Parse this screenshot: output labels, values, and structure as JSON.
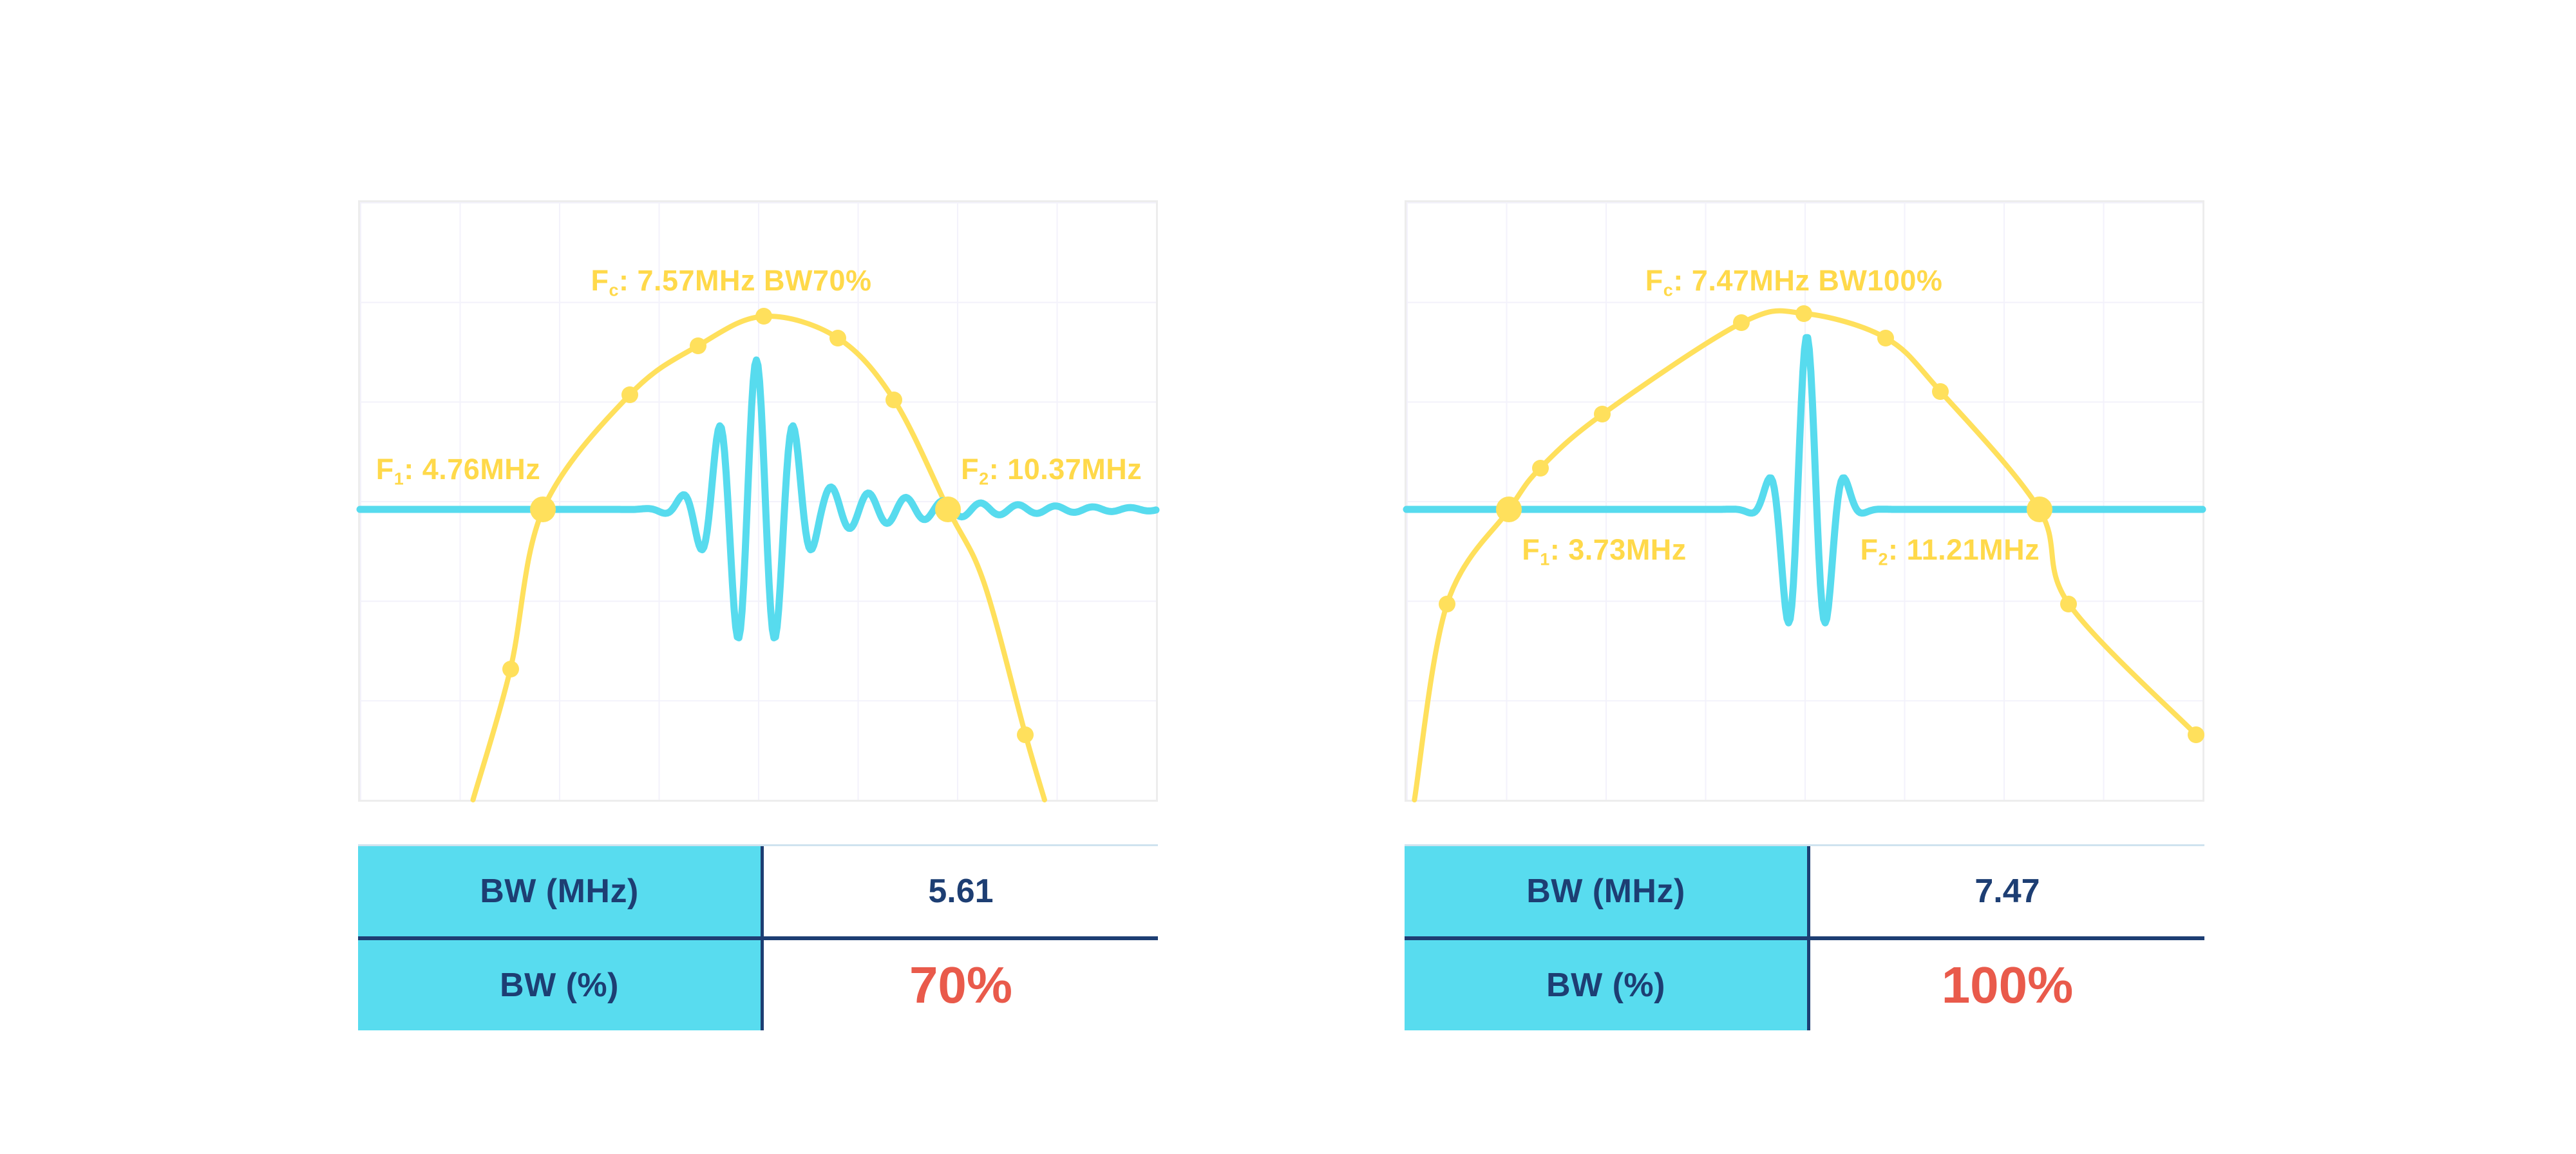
{
  "colors": {
    "spectrum_yellow": "#FFE05C",
    "annotation_yellow": "#FFD94A",
    "signal_cyan": "#57DBEE",
    "table_cyan": "#58DCEF",
    "navy": "#1D3E73",
    "accent_red": "#E95A4B",
    "grid": "#f3f2fb",
    "panel_border": "#ededed"
  },
  "chart_data": [
    {
      "type": "line",
      "id": "bw70",
      "grid": true,
      "axes_visible": false,
      "center_frequency_mhz": 7.57,
      "f_low_mhz": 4.76,
      "f_high_mhz": 10.37,
      "bandwidth_mhz": 5.61,
      "bandwidth_percent": 70,
      "labels": {
        "f": "F",
        "fc_sub": "c",
        "fc_text": ": 7.57MHz BW70%",
        "f1_sub": "1",
        "f1_text": ": 4.76MHz",
        "f2_sub": "2",
        "f2_text": ": 10.37MHz"
      },
      "positions": {
        "fc": {
          "x": 29,
          "y": 10.5
        },
        "f1": {
          "x": 2,
          "y": 42
        },
        "f2": {
          "x": 75.5,
          "y": 42
        }
      },
      "baseline_y": 51.4,
      "spectrum_points": [
        [
          14.2,
          100
        ],
        [
          18.9,
          78.1
        ],
        [
          23,
          51.4
        ],
        [
          33.9,
          32.2
        ],
        [
          42.5,
          24
        ],
        [
          50.7,
          19.1
        ],
        [
          60,
          22.7
        ],
        [
          67.1,
          33.1
        ],
        [
          73.9,
          51.4
        ],
        [
          78.4,
          63.7
        ],
        [
          83.6,
          89.1
        ],
        [
          86,
          100
        ]
      ],
      "dots": [
        {
          "x": 18.9,
          "y": 78.1,
          "size": "sm"
        },
        {
          "x": 33.9,
          "y": 32.2,
          "size": "sm"
        },
        {
          "x": 42.5,
          "y": 24,
          "size": "sm"
        },
        {
          "x": 50.7,
          "y": 19.1,
          "size": "sm"
        },
        {
          "x": 60,
          "y": 22.7,
          "size": "sm"
        },
        {
          "x": 67.1,
          "y": 33.1,
          "size": "sm"
        },
        {
          "x": 83.6,
          "y": 89.1,
          "size": "sm"
        },
        {
          "x": 23,
          "y": 51.4,
          "size": "lg"
        },
        {
          "x": 73.9,
          "y": 51.4,
          "size": "lg"
        }
      ],
      "pulse": {
        "center_x": 49.8,
        "amplitude": 25,
        "sigma": 4.3,
        "period": 4.7,
        "tail_amplitude": 7,
        "tail_decay": 15
      },
      "table": {
        "rows": [
          {
            "label": "BW (MHz)",
            "value": "5.61"
          },
          {
            "label": "BW (%)",
            "value": "70%"
          }
        ]
      }
    },
    {
      "type": "line",
      "id": "bw100",
      "grid": true,
      "axes_visible": false,
      "center_frequency_mhz": 7.47,
      "f_low_mhz": 3.73,
      "f_high_mhz": 11.21,
      "bandwidth_mhz": 7.47,
      "bandwidth_percent": 100,
      "labels": {
        "f": "F",
        "fc_sub": "c",
        "fc_text": ": 7.47MHz BW100%",
        "f1_sub": "1",
        "f1_text": ": 3.73MHz",
        "f2_sub": "2",
        "f2_text": ": 11.21MHz"
      },
      "positions": {
        "fc": {
          "x": 30,
          "y": 10.5
        },
        "f1": {
          "x": 14.5,
          "y": 55.5
        },
        "f2": {
          "x": 57,
          "y": 55.5
        }
      },
      "baseline_y": 51.4,
      "spectrum_points": [
        [
          1,
          100
        ],
        [
          5.1,
          67.2
        ],
        [
          12.9,
          51.4
        ],
        [
          16.8,
          44.5
        ],
        [
          24.6,
          35.5
        ],
        [
          42.1,
          20.2
        ],
        [
          49.9,
          18.6
        ],
        [
          60.2,
          22.7
        ],
        [
          67.1,
          31.7
        ],
        [
          79.5,
          51.4
        ],
        [
          83.2,
          67.2
        ],
        [
          99.2,
          89.1
        ]
      ],
      "dots": [
        {
          "x": 5.1,
          "y": 67.2,
          "size": "sm"
        },
        {
          "x": 16.8,
          "y": 44.5,
          "size": "sm"
        },
        {
          "x": 24.6,
          "y": 35.5,
          "size": "sm"
        },
        {
          "x": 42.1,
          "y": 20.2,
          "size": "sm"
        },
        {
          "x": 49.9,
          "y": 18.6,
          "size": "sm"
        },
        {
          "x": 60.2,
          "y": 22.7,
          "size": "sm"
        },
        {
          "x": 67.1,
          "y": 31.7,
          "size": "sm"
        },
        {
          "x": 83.2,
          "y": 67.2,
          "size": "sm"
        },
        {
          "x": 99.2,
          "y": 89.1,
          "size": "sm"
        },
        {
          "x": 12.9,
          "y": 51.4,
          "size": "lg"
        },
        {
          "x": 79.5,
          "y": 51.4,
          "size": "lg"
        }
      ],
      "pulse": {
        "center_x": 50.3,
        "amplitude": 29,
        "sigma": 2.6,
        "period": 5,
        "tail_amplitude": 0,
        "tail_decay": 1
      },
      "table": {
        "rows": [
          {
            "label": "BW (MHz)",
            "value": "7.47"
          },
          {
            "label": "BW (%)",
            "value": "100%"
          }
        ]
      }
    }
  ]
}
